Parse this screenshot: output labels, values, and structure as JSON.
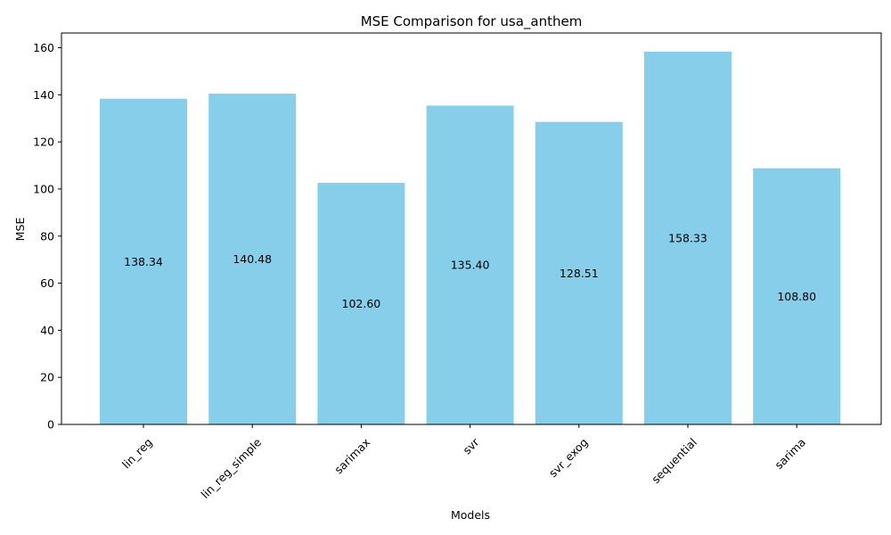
{
  "chart_data": {
    "type": "bar",
    "title": "MSE Comparison for usa_anthem",
    "xlabel": "Models",
    "ylabel": "MSE",
    "categories": [
      "lin_reg",
      "lin_reg_simple",
      "sarimax",
      "svr",
      "svr_exog",
      "sequential",
      "sarima"
    ],
    "values": [
      138.34,
      140.48,
      102.6,
      135.4,
      128.51,
      158.33,
      108.8
    ],
    "value_labels": [
      "138.34",
      "140.48",
      "102.60",
      "135.40",
      "128.51",
      "158.33",
      "108.80"
    ],
    "ylim": [
      0,
      166.25
    ],
    "yticks": [
      0,
      20,
      40,
      60,
      80,
      100,
      120,
      140,
      160
    ],
    "grid": false,
    "legend": "none",
    "bar_color": "#87ceeb",
    "value_label_position": "middle of bar",
    "xtick_rotation": "45 degrees"
  }
}
